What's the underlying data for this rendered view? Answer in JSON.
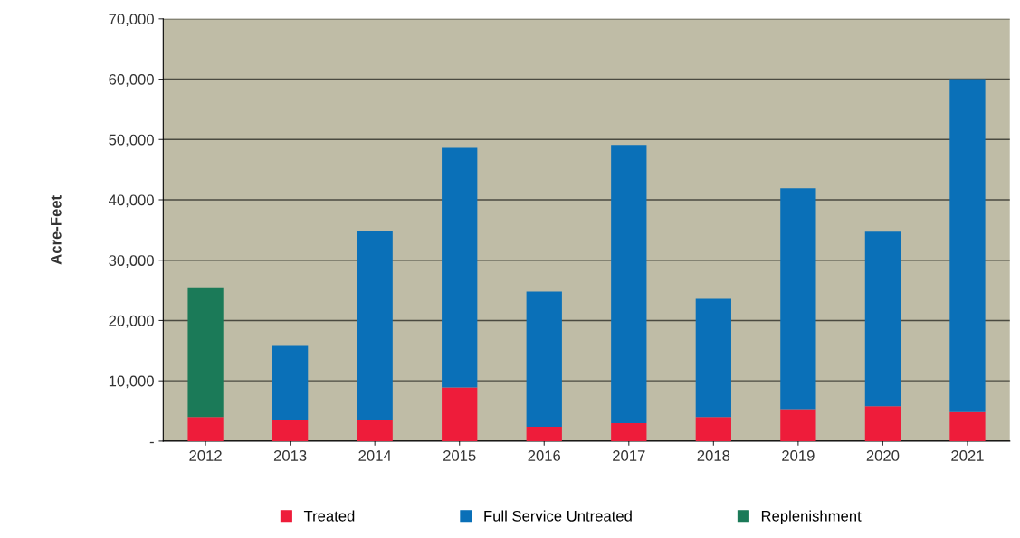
{
  "chart_data": {
    "type": "bar",
    "stacked": true,
    "ylabel": "Acre-Feet",
    "categories": [
      "2012",
      "2013",
      "2014",
      "2015",
      "2016",
      "2017",
      "2018",
      "2019",
      "2020",
      "2021"
    ],
    "series": [
      {
        "name": "Treated",
        "color": "#ee1c3a",
        "values": [
          4000,
          3600,
          3600,
          8900,
          2400,
          3000,
          4000,
          5300,
          5800,
          4800
        ]
      },
      {
        "name": "Full Service Untreated",
        "color": "#0a70b8",
        "values": [
          0,
          12200,
          31200,
          39700,
          22400,
          46100,
          19600,
          36600,
          28900,
          55200
        ]
      },
      {
        "name": "Replenishment",
        "color": "#1b7a58",
        "values": [
          21500,
          0,
          0,
          0,
          0,
          0,
          0,
          0,
          0,
          0
        ]
      }
    ],
    "ylim": [
      0,
      70000
    ],
    "yticks": [
      {
        "value": 0,
        "label": "-"
      },
      {
        "value": 10000,
        "label": "10,000"
      },
      {
        "value": 20000,
        "label": "20,000"
      },
      {
        "value": 30000,
        "label": "30,000"
      },
      {
        "value": 40000,
        "label": "40,000"
      },
      {
        "value": 50000,
        "label": "50,000"
      },
      {
        "value": 60000,
        "label": "60,000"
      },
      {
        "value": 70000,
        "label": "70,000"
      }
    ],
    "grid": "y",
    "legend": "bottom"
  }
}
